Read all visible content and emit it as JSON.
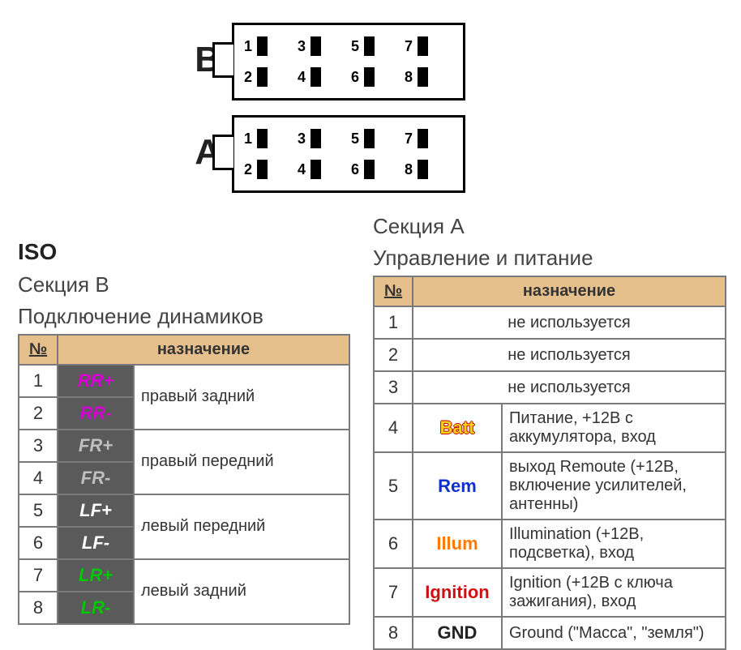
{
  "connector_diagram": {
    "connectors": [
      {
        "label": "B",
        "pins": [
          1,
          3,
          5,
          7,
          2,
          4,
          6,
          8
        ]
      },
      {
        "label": "A",
        "pins": [
          1,
          3,
          5,
          7,
          2,
          4,
          6,
          8
        ]
      }
    ],
    "border_color": "#000000",
    "pin_fill": "#000000",
    "label_fontsize": 44
  },
  "section_b": {
    "iso_label": "ISO",
    "title": "Секция B",
    "subtitle": "Подключение динамиков",
    "header_num": "№",
    "header_desc": "назначение",
    "header_bg": "#e6c08c",
    "code_bg": "#5a5a5a",
    "rows": [
      {
        "num": 1,
        "code": "RR+",
        "code_color": "#d400d4",
        "desc": "правый задний",
        "rowspan": 2
      },
      {
        "num": 2,
        "code": "RR-",
        "code_color": "#d400d4"
      },
      {
        "num": 3,
        "code": "FR+",
        "code_color": "#bfbfbf",
        "desc": "правый передний",
        "rowspan": 2
      },
      {
        "num": 4,
        "code": "FR-",
        "code_color": "#bfbfbf"
      },
      {
        "num": 5,
        "code": "LF+",
        "code_color": "#ffffff",
        "desc": "левый передний",
        "rowspan": 2
      },
      {
        "num": 6,
        "code": "LF-",
        "code_color": "#ffffff"
      },
      {
        "num": 7,
        "code": "LR+",
        "code_color": "#00c800",
        "desc": "левый задний",
        "rowspan": 2
      },
      {
        "num": 8,
        "code": "LR-",
        "code_color": "#00c800"
      }
    ]
  },
  "section_a": {
    "title": "Секция A",
    "subtitle": "Управление и питание",
    "header_num": "№",
    "header_desc": "назначение",
    "header_bg": "#e6c08c",
    "rows": [
      {
        "num": 1,
        "desc": "не используется",
        "colspan": 2,
        "center": true
      },
      {
        "num": 2,
        "desc": "не используется",
        "colspan": 2,
        "center": true
      },
      {
        "num": 3,
        "desc": "не используется",
        "colspan": 2,
        "center": true
      },
      {
        "num": 4,
        "code": "Batt",
        "code_color": "#ffd11a",
        "code_shadow": true,
        "desc": "Питание, +12В с аккумулятора, вход"
      },
      {
        "num": 5,
        "code": "Rem",
        "code_color": "#1030d0",
        "desc": "выход Remoute (+12В, включение усилителей, антенны)"
      },
      {
        "num": 6,
        "code": "Illum",
        "code_color": "#ff7a00",
        "desc": "Illumination (+12В, подсветка), вход"
      },
      {
        "num": 7,
        "code": "Ignition",
        "code_color": "#d01010",
        "desc": "Ignition (+12В с ключа зажигания), вход"
      },
      {
        "num": 8,
        "code": "GND",
        "code_color": "#222222",
        "desc": "Ground (\"Масса\", \"земля\")"
      }
    ]
  },
  "colors": {
    "page_bg": "#ffffff",
    "text": "#333333",
    "table_border": "#7a7a7a"
  }
}
